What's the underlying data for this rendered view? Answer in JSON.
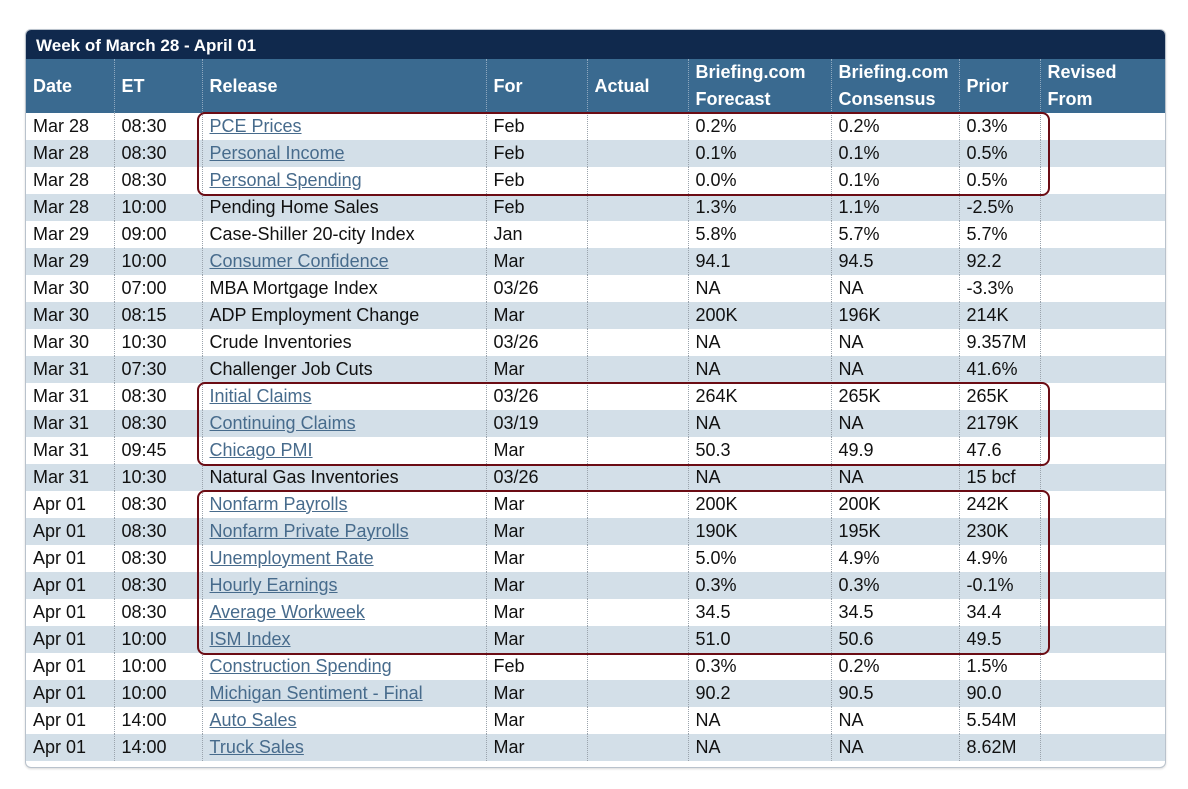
{
  "week_title": "Week of March 28 - April 01",
  "columns": {
    "date": "Date",
    "et": "ET",
    "release": "Release",
    "for": "For",
    "actual": "Actual",
    "forecast_l1": "Briefing.com",
    "forecast_l2": "Forecast",
    "consensus_l1": "Briefing.com",
    "consensus_l2": "Consensus",
    "prior": "Prior",
    "revised_l1": "Revised",
    "revised_l2": "From"
  },
  "rows": [
    {
      "date": "Mar 28",
      "et": "08:30",
      "release": "PCE Prices",
      "link": true,
      "for": "Feb",
      "actual": "",
      "forecast": "0.2%",
      "consensus": "0.2%",
      "prior": "0.3%",
      "revised": ""
    },
    {
      "date": "Mar 28",
      "et": "08:30",
      "release": "Personal Income",
      "link": true,
      "for": "Feb",
      "actual": "",
      "forecast": "0.1%",
      "consensus": "0.1%",
      "prior": "0.5%",
      "revised": ""
    },
    {
      "date": "Mar 28",
      "et": "08:30",
      "release": "Personal Spending",
      "link": true,
      "for": "Feb",
      "actual": "",
      "forecast": "0.0%",
      "consensus": "0.1%",
      "prior": "0.5%",
      "revised": ""
    },
    {
      "date": "Mar 28",
      "et": "10:00",
      "release": "Pending Home Sales",
      "link": false,
      "for": "Feb",
      "actual": "",
      "forecast": "1.3%",
      "consensus": "1.1%",
      "prior": "-2.5%",
      "revised": ""
    },
    {
      "date": "Mar 29",
      "et": "09:00",
      "release": "Case-Shiller 20-city Index",
      "link": false,
      "for": "Jan",
      "actual": "",
      "forecast": "5.8%",
      "consensus": "5.7%",
      "prior": "5.7%",
      "revised": ""
    },
    {
      "date": "Mar 29",
      "et": "10:00",
      "release": "Consumer Confidence",
      "link": true,
      "for": "Mar",
      "actual": "",
      "forecast": "94.1",
      "consensus": "94.5",
      "prior": "92.2",
      "revised": ""
    },
    {
      "date": "Mar 30",
      "et": "07:00",
      "release": "MBA Mortgage Index",
      "link": false,
      "for": "03/26",
      "actual": "",
      "forecast": "NA",
      "consensus": "NA",
      "prior": "-3.3%",
      "revised": ""
    },
    {
      "date": "Mar 30",
      "et": "08:15",
      "release": "ADP Employment Change",
      "link": false,
      "for": "Mar",
      "actual": "",
      "forecast": "200K",
      "consensus": "196K",
      "prior": "214K",
      "revised": ""
    },
    {
      "date": "Mar 30",
      "et": "10:30",
      "release": "Crude Inventories",
      "link": false,
      "for": "03/26",
      "actual": "",
      "forecast": "NA",
      "consensus": "NA",
      "prior": "9.357M",
      "revised": ""
    },
    {
      "date": "Mar 31",
      "et": "07:30",
      "release": "Challenger Job Cuts",
      "link": false,
      "for": "Mar",
      "actual": "",
      "forecast": "NA",
      "consensus": "NA",
      "prior": "41.6%",
      "revised": ""
    },
    {
      "date": "Mar 31",
      "et": "08:30",
      "release": "Initial Claims",
      "link": true,
      "for": "03/26",
      "actual": "",
      "forecast": "264K",
      "consensus": "265K",
      "prior": "265K",
      "revised": ""
    },
    {
      "date": "Mar 31",
      "et": "08:30",
      "release": "Continuing Claims",
      "link": true,
      "for": "03/19",
      "actual": "",
      "forecast": "NA",
      "consensus": "NA",
      "prior": "2179K",
      "revised": ""
    },
    {
      "date": "Mar 31",
      "et": "09:45",
      "release": "Chicago PMI",
      "link": true,
      "for": "Mar",
      "actual": "",
      "forecast": "50.3",
      "consensus": "49.9",
      "prior": "47.6",
      "revised": ""
    },
    {
      "date": "Mar 31",
      "et": "10:30",
      "release": "Natural Gas Inventories",
      "link": false,
      "for": "03/26",
      "actual": "",
      "forecast": "NA",
      "consensus": "NA",
      "prior": "15 bcf",
      "revised": ""
    },
    {
      "date": "Apr 01",
      "et": "08:30",
      "release": "Nonfarm Payrolls",
      "link": true,
      "for": "Mar",
      "actual": "",
      "forecast": "200K",
      "consensus": "200K",
      "prior": "242K",
      "revised": ""
    },
    {
      "date": "Apr 01",
      "et": "08:30",
      "release": "Nonfarm Private Payrolls",
      "link": true,
      "for": "Mar",
      "actual": "",
      "forecast": "190K",
      "consensus": "195K",
      "prior": "230K",
      "revised": ""
    },
    {
      "date": "Apr 01",
      "et": "08:30",
      "release": "Unemployment Rate",
      "link": true,
      "for": "Mar",
      "actual": "",
      "forecast": "5.0%",
      "consensus": "4.9%",
      "prior": "4.9%",
      "revised": ""
    },
    {
      "date": "Apr 01",
      "et": "08:30",
      "release": "Hourly Earnings",
      "link": true,
      "for": "Mar",
      "actual": "",
      "forecast": "0.3%",
      "consensus": "0.3%",
      "prior": "-0.1%",
      "revised": ""
    },
    {
      "date": "Apr 01",
      "et": "08:30",
      "release": "Average Workweek",
      "link": true,
      "for": "Mar",
      "actual": "",
      "forecast": "34.5",
      "consensus": "34.5",
      "prior": "34.4",
      "revised": ""
    },
    {
      "date": "Apr 01",
      "et": "10:00",
      "release": "ISM Index",
      "link": true,
      "for": "Mar",
      "actual": "",
      "forecast": "51.0",
      "consensus": "50.6",
      "prior": "49.5",
      "revised": ""
    },
    {
      "date": "Apr 01",
      "et": "10:00",
      "release": "Construction Spending",
      "link": true,
      "for": "Feb",
      "actual": "",
      "forecast": "0.3%",
      "consensus": "0.2%",
      "prior": "1.5%",
      "revised": ""
    },
    {
      "date": "Apr 01",
      "et": "10:00",
      "release": "Michigan Sentiment - Final",
      "link": true,
      "for": "Mar",
      "actual": "",
      "forecast": "90.2",
      "consensus": "90.5",
      "prior": "90.0",
      "revised": ""
    },
    {
      "date": "Apr 01",
      "et": "14:00",
      "release": "Auto Sales",
      "link": true,
      "for": "Mar",
      "actual": "",
      "forecast": "NA",
      "consensus": "NA",
      "prior": "5.54M",
      "revised": ""
    },
    {
      "date": "Apr 01",
      "et": "14:00",
      "release": "Truck Sales",
      "link": true,
      "for": "Mar",
      "actual": "",
      "forecast": "NA",
      "consensus": "NA",
      "prior": "8.62M",
      "revised": ""
    }
  ],
  "highlights": {
    "color": "#6b0c14",
    "groups": [
      {
        "first_row": 0,
        "last_row": 2
      },
      {
        "first_row": 10,
        "last_row": 12
      },
      {
        "first_row": 14,
        "last_row": 19
      }
    ]
  }
}
